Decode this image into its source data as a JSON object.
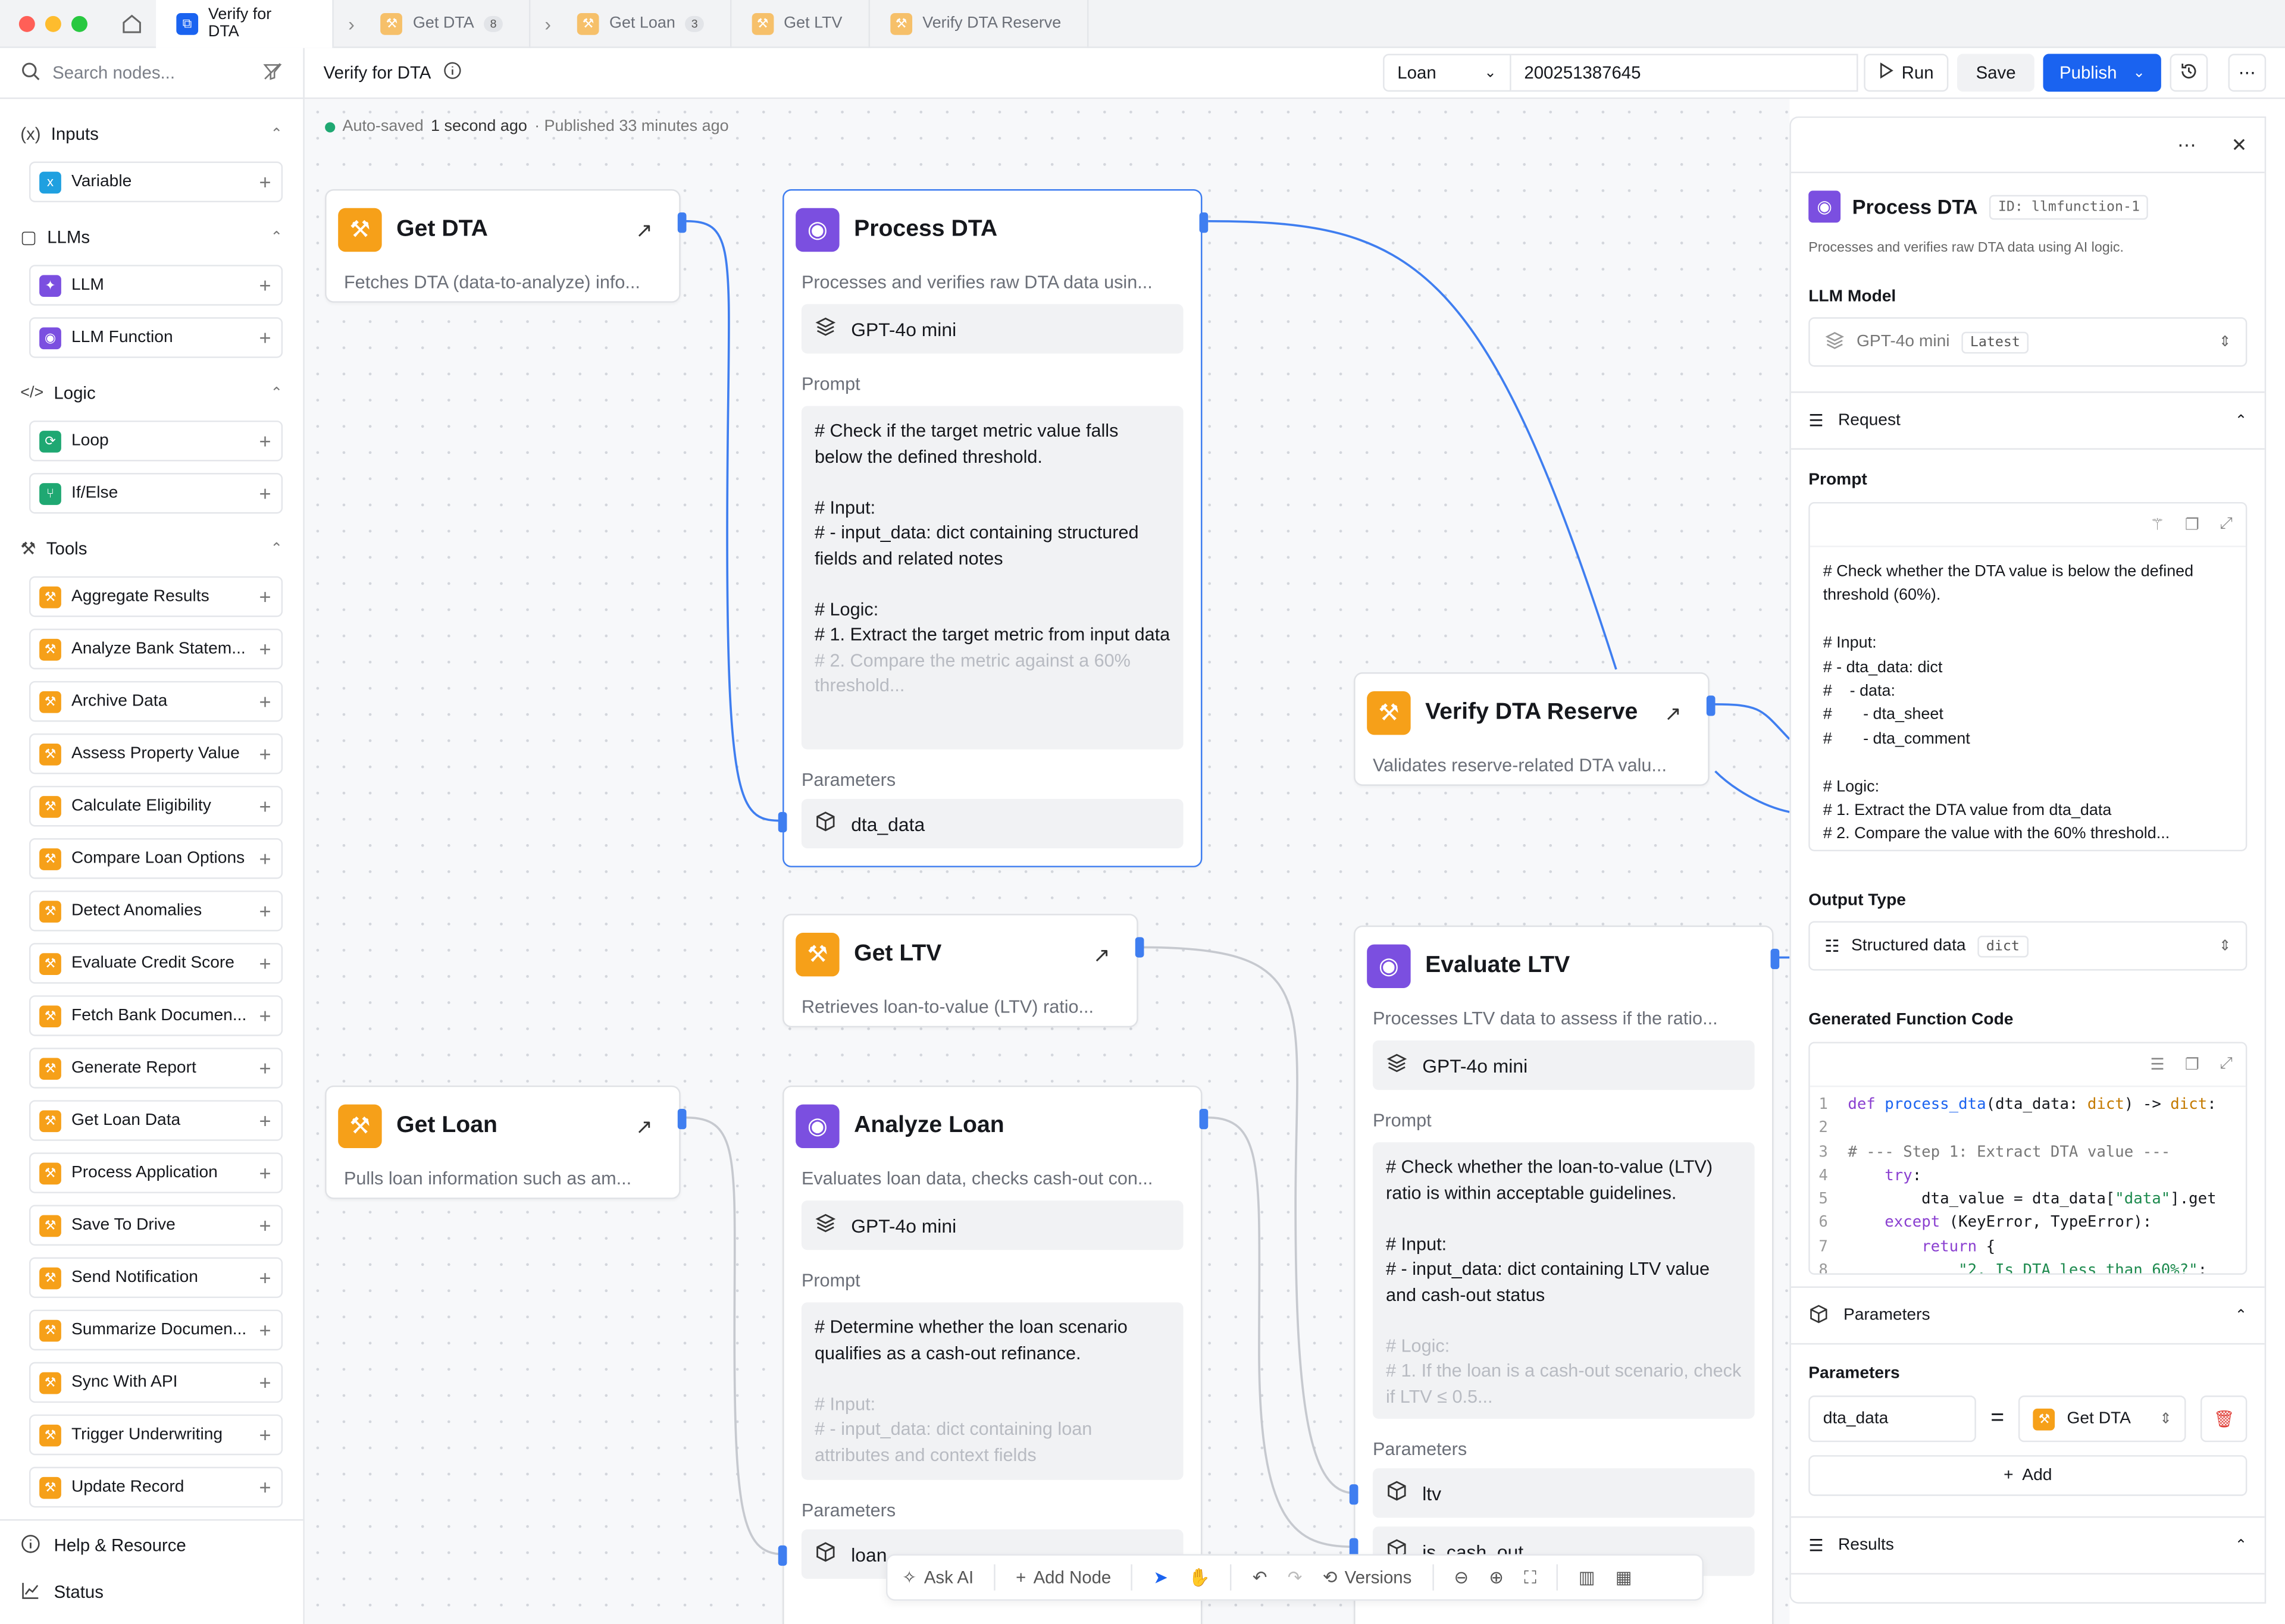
{
  "tabs": [
    {
      "label": "Verify for DTA",
      "active": true,
      "icon": "workflow-icon"
    },
    {
      "label": "Get DTA",
      "badge": "8",
      "icon": "wrench-icon"
    },
    {
      "label": "Get Loan",
      "badge": "3",
      "icon": "wrench-icon"
    },
    {
      "label": "Get LTV",
      "icon": "wrench-icon"
    },
    {
      "label": "Verify DTA Reserve",
      "icon": "wrench-icon"
    }
  ],
  "colors": {
    "accent": "#1a63f0",
    "tool": "#f6a019",
    "llm": "#7b4fe0",
    "logic": "#1fa872",
    "input": "#1fa0e0",
    "autosave": "#1fa872"
  },
  "sidebar": {
    "search_placeholder": "Search nodes...",
    "sections": [
      {
        "title": "Inputs",
        "items": [
          "Variable"
        ]
      },
      {
        "title": "LLMs",
        "items": [
          "LLM",
          "LLM Function"
        ]
      },
      {
        "title": "Logic",
        "items": [
          "Loop",
          "If/Else"
        ]
      },
      {
        "title": "Tools",
        "items": [
          "Aggregate Results",
          "Analyze Bank Statem...",
          "Archive Data",
          "Assess Property Value",
          "Calculate Eligibility",
          "Compare Loan Options",
          "Detect Anomalies",
          "Evaluate Credit Score",
          "Fetch Bank Documen...",
          "Generate Report",
          "Get Loan Data",
          "Process Application",
          "Save To Drive",
          "Send Notification",
          "Summarize Documen...",
          "Sync With API",
          "Trigger Underwriting",
          "Update Record"
        ]
      }
    ],
    "footer": {
      "help": "Help & Resource",
      "status": "Status"
    }
  },
  "toolbar": {
    "title": "Verify for DTA",
    "entity_select": "Loan",
    "entity_id": "200251387645",
    "run": "Run",
    "save": "Save",
    "publish": "Publish"
  },
  "canvas": {
    "autosaved_label": "Auto-saved",
    "autosaved_time": "1 second ago",
    "published": "· Published 33 minutes ago",
    "nodes": {
      "get_dta": {
        "title": "Get DTA",
        "desc": "Fetches DTA (data-to-analyze) info..."
      },
      "process_dta": {
        "title": "Process DTA",
        "desc": "Processes and verifies raw DTA data usin...",
        "model": "GPT-4o mini",
        "prompt_label": "Prompt",
        "prompt": "# Check if the target metric value falls below the defined threshold.\n\n# Input:\n# - input_data: dict containing structured fields and related notes\n\n# Logic:\n# 1. Extract the target metric from input data",
        "prompt_fade": "# 2. Compare the metric against a 60% threshold...",
        "params_label": "Parameters",
        "param": "dta_data"
      },
      "verify_reserve": {
        "title": "Verify DTA Reserve",
        "desc": "Validates reserve-related DTA valu..."
      },
      "get_ltv": {
        "title": "Get LTV",
        "desc": "Retrieves loan-to-value (LTV) ratio..."
      },
      "evaluate_ltv": {
        "title": "Evaluate LTV",
        "desc": "Processes LTV data to assess if the ratio...",
        "model": "GPT-4o mini",
        "prompt_label": "Prompt",
        "prompt": "# Check whether the loan-to-value (LTV) ratio is within acceptable guidelines.\n\n# Input:\n# - input_data: dict containing LTV value and cash-out status\n",
        "prompt_fade": "# Logic:\n# 1. If the loan is a cash-out scenario, check if LTV ≤ 0.5...",
        "params_label": "Parameters",
        "param1": "ltv",
        "param2": "is_cash_out"
      },
      "get_loan": {
        "title": "Get Loan",
        "desc": "Pulls loan information such as am..."
      },
      "analyze_loan": {
        "title": "Analyze Loan",
        "desc": "Evaluates loan data, checks cash-out con...",
        "model": "GPT-4o mini",
        "prompt_label": "Prompt",
        "prompt": "# Determine whether the loan scenario qualifies as a cash-out refinance.\n",
        "prompt_fade": "# Input:\n# - input_data: dict containing loan attributes and context fields",
        "params_label": "Parameters",
        "param": "loan"
      }
    }
  },
  "bottombar": {
    "ask_ai": "Ask AI",
    "add_node": "Add Node",
    "versions": "Versions"
  },
  "panel": {
    "title": "Process DTA",
    "id": "ID: llmfunction-1",
    "desc": "Processes and verifies raw DTA data using AI logic.",
    "llm_model_label": "LLM Model",
    "model": "GPT-4o mini",
    "model_tag": "Latest",
    "request_label": "Request",
    "prompt_label": "Prompt",
    "prompt": "# Check whether the DTA value is below the defined threshold (60%).\n\n# Input:\n# - dta_data: dict\n#    - data:\n#       - dta_sheet\n#       - dta_comment\n\n# Logic:\n# 1. Extract the DTA value from dta_data\n# 2. Compare the value with the 60% threshold...",
    "output_type_label": "Output Type",
    "output_type": "Structured data",
    "output_tag": "dict",
    "code_label": "Generated Function Code",
    "params_section": "Parameters",
    "params_label": "Parameters",
    "param_name": "dta_data",
    "param_source": "Get DTA",
    "add": "Add",
    "results": "Results"
  }
}
